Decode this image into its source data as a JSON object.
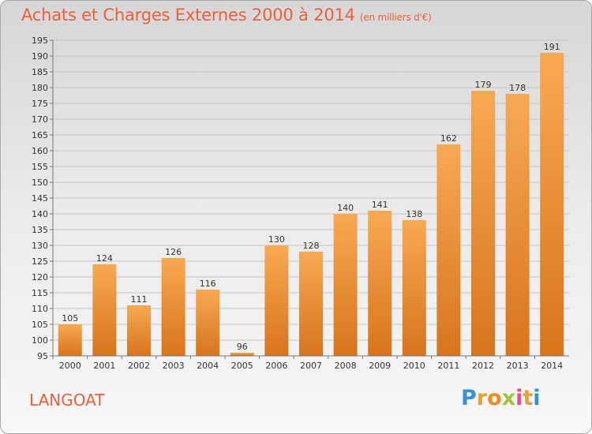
{
  "header": {
    "title": "Achats et Charges Externes 2000 à 2014",
    "subtitle": "(en milliers d'€)"
  },
  "commune": "LANGOAT",
  "logo": {
    "letters": [
      "P",
      "r",
      "o",
      "x",
      "i",
      "t",
      "i"
    ],
    "colors": [
      "#3a8fd6",
      "#e8a13a",
      "#f08c1a",
      "#9cc73c",
      "#e84a8a",
      "#e8a13a",
      "#3a8fd6"
    ]
  },
  "colors": {
    "title": "#ec5e3c",
    "bar_light": "#f7a952",
    "bar_dark": "#d8741c"
  },
  "chart_data": {
    "type": "bar",
    "title": "Achats et Charges Externes 2000 à 2014",
    "subtitle": "(en milliers d'€)",
    "categories": [
      "2000",
      "2001",
      "2002",
      "2003",
      "2004",
      "2005",
      "2006",
      "2007",
      "2008",
      "2009",
      "2010",
      "2011",
      "2012",
      "2013",
      "2014"
    ],
    "values": [
      105,
      124,
      111,
      126,
      116,
      96,
      130,
      128,
      140,
      141,
      138,
      162,
      179,
      178,
      191
    ],
    "ylim": [
      95,
      195
    ],
    "yticks": [
      95,
      100,
      105,
      110,
      115,
      120,
      125,
      130,
      135,
      140,
      145,
      150,
      155,
      160,
      165,
      170,
      175,
      180,
      185,
      190,
      195
    ],
    "grid": true,
    "legend": "none"
  }
}
